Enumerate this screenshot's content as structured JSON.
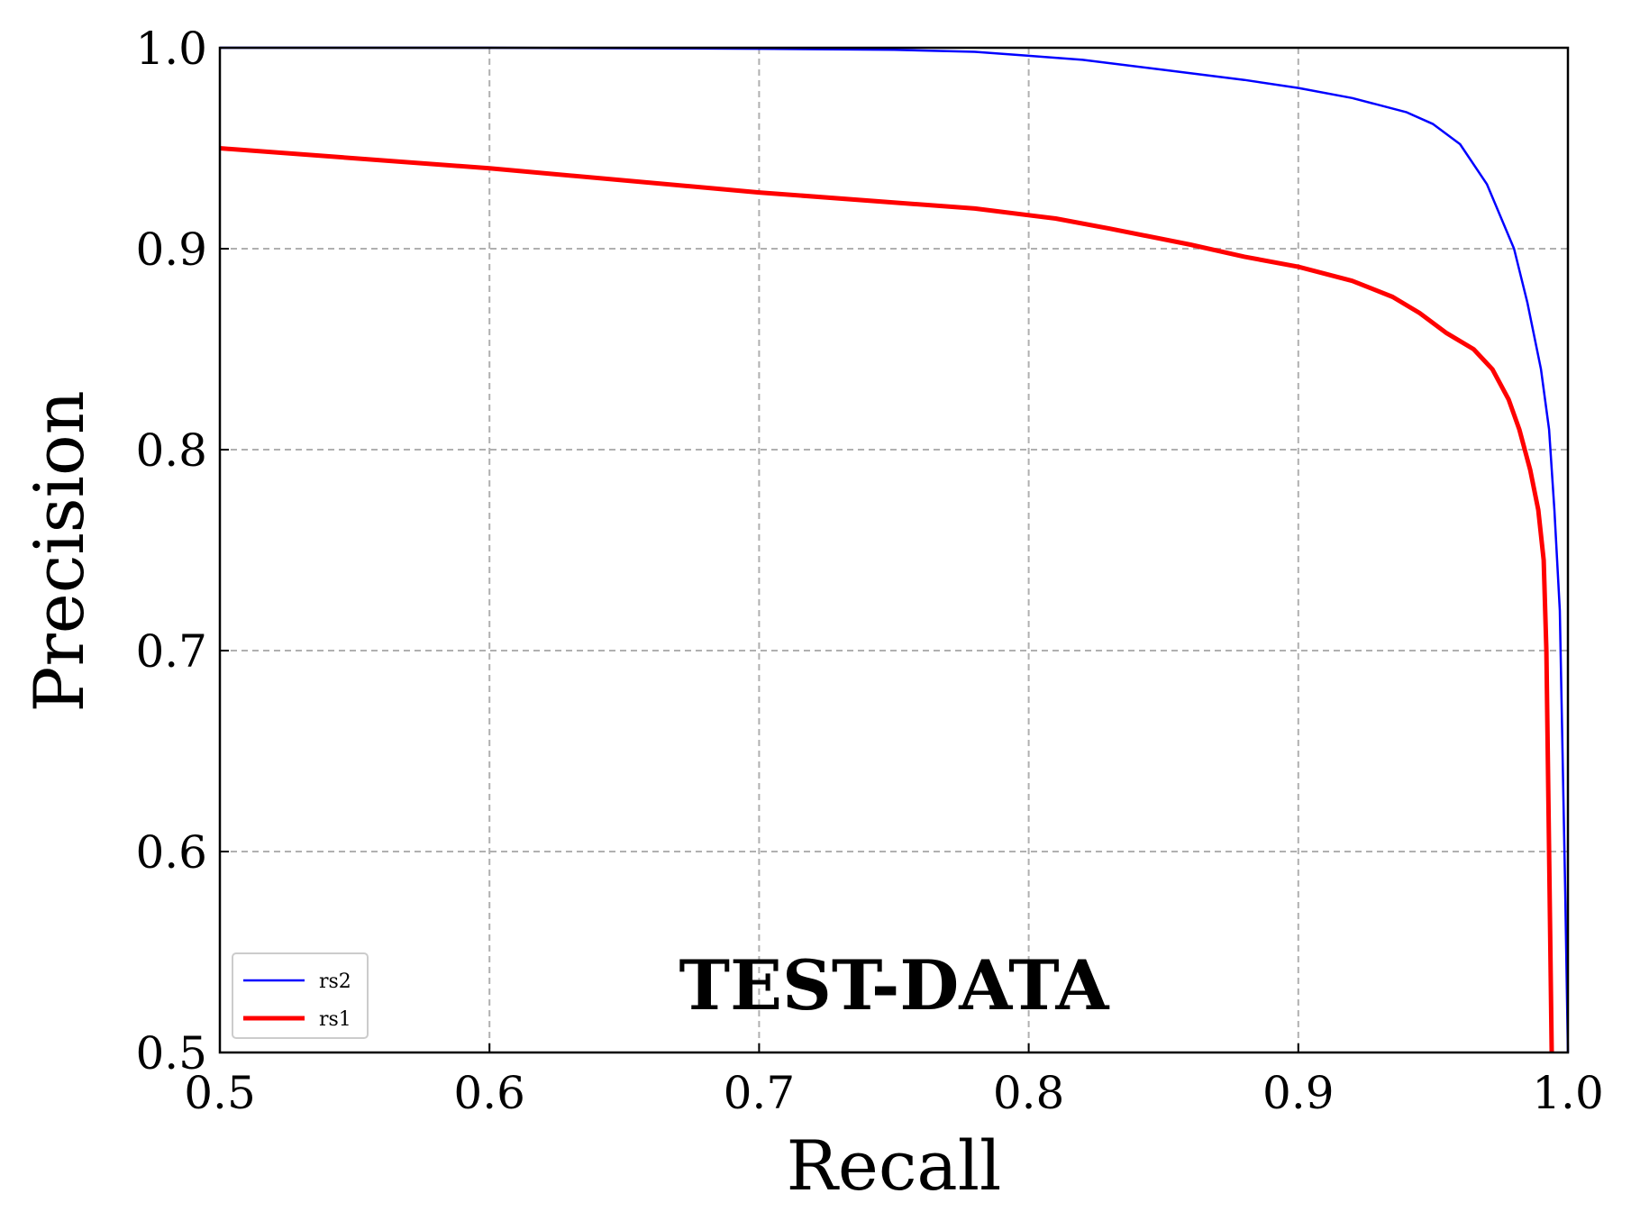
{
  "chart_data": {
    "type": "line",
    "title": "",
    "xlabel": "Recall",
    "ylabel": "Precision",
    "xlim": [
      0.5,
      1.0
    ],
    "ylim": [
      0.5,
      1.0
    ],
    "x_ticks": [
      "0.5",
      "0.6",
      "0.7",
      "0.8",
      "0.9",
      "1.0"
    ],
    "y_ticks": [
      "0.5",
      "0.6",
      "0.7",
      "0.8",
      "0.9",
      "1.0"
    ],
    "grid": true,
    "legend_position": "bottom-left",
    "annotation": "TEST-DATA",
    "series": [
      {
        "name": "rs2",
        "color": "#0000ff",
        "line_width": "thin",
        "points": [
          [
            0.5,
            1.0
          ],
          [
            0.6,
            1.0
          ],
          [
            0.7,
            0.9995
          ],
          [
            0.75,
            0.999
          ],
          [
            0.78,
            0.998
          ],
          [
            0.8,
            0.996
          ],
          [
            0.82,
            0.994
          ],
          [
            0.85,
            0.989
          ],
          [
            0.88,
            0.984
          ],
          [
            0.9,
            0.98
          ],
          [
            0.92,
            0.975
          ],
          [
            0.94,
            0.968
          ],
          [
            0.95,
            0.962
          ],
          [
            0.96,
            0.952
          ],
          [
            0.97,
            0.932
          ],
          [
            0.98,
            0.9
          ],
          [
            0.985,
            0.873
          ],
          [
            0.99,
            0.84
          ],
          [
            0.993,
            0.81
          ],
          [
            0.995,
            0.77
          ],
          [
            0.997,
            0.72
          ],
          [
            0.998,
            0.65
          ],
          [
            0.999,
            0.58
          ],
          [
            1.0,
            0.5
          ]
        ]
      },
      {
        "name": "rs1",
        "color": "#ff0000",
        "line_width": "thick",
        "points": [
          [
            0.5,
            0.95
          ],
          [
            0.6,
            0.94
          ],
          [
            0.7,
            0.928
          ],
          [
            0.78,
            0.92
          ],
          [
            0.81,
            0.915
          ],
          [
            0.83,
            0.91
          ],
          [
            0.86,
            0.902
          ],
          [
            0.88,
            0.896
          ],
          [
            0.9,
            0.891
          ],
          [
            0.92,
            0.884
          ],
          [
            0.935,
            0.876
          ],
          [
            0.945,
            0.868
          ],
          [
            0.955,
            0.858
          ],
          [
            0.965,
            0.85
          ],
          [
            0.972,
            0.84
          ],
          [
            0.978,
            0.825
          ],
          [
            0.982,
            0.81
          ],
          [
            0.986,
            0.79
          ],
          [
            0.989,
            0.77
          ],
          [
            0.991,
            0.745
          ],
          [
            0.992,
            0.7
          ],
          [
            0.993,
            0.6
          ],
          [
            0.994,
            0.5
          ]
        ]
      }
    ]
  }
}
